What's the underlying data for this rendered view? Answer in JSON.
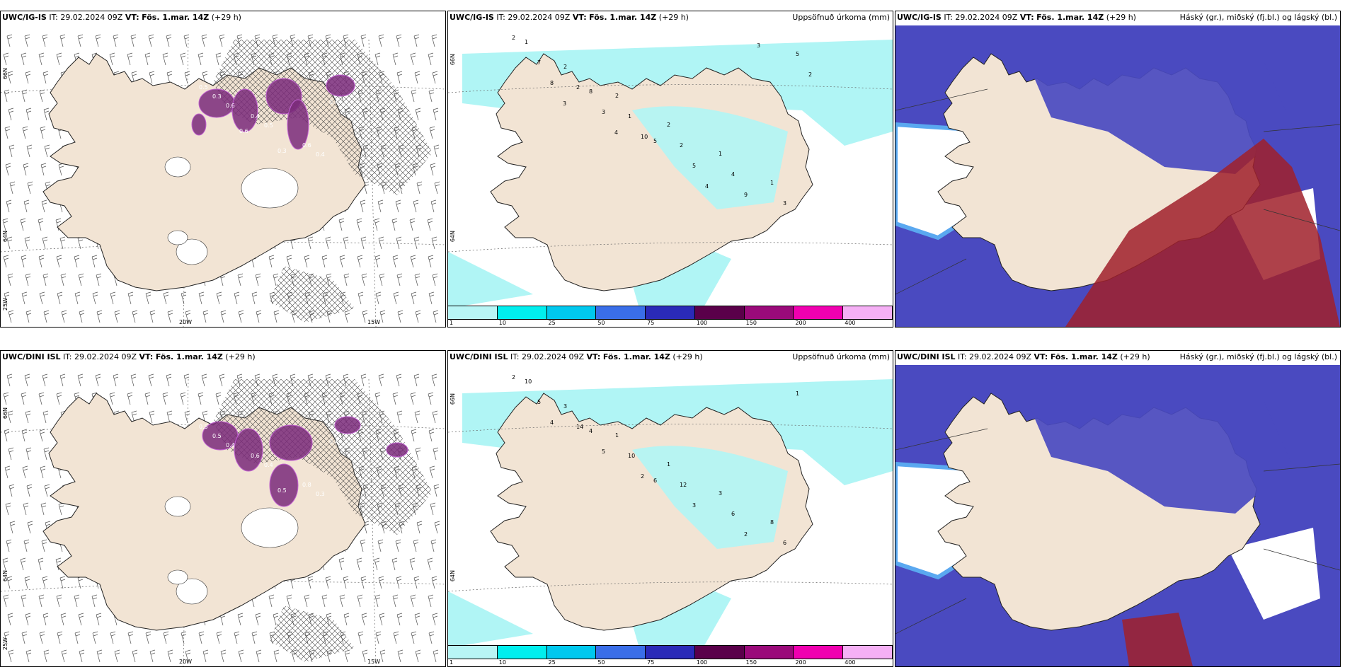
{
  "panels": [
    {
      "model": "UWC/IG-IS",
      "it": "IT: 29.02.2024 09Z",
      "vt_label": "VT:",
      "vt": "Fös. 1.mar. 14Z",
      "lead": "(+29 h)",
      "right_label": ""
    },
    {
      "model": "UWC/IG-IS",
      "it": "IT: 29.02.2024 09Z",
      "vt_label": "VT:",
      "vt": "Fös. 1.mar. 14Z",
      "lead": "(+29 h)",
      "right_label": "Uppsöfnuð úrkoma (mm)"
    },
    {
      "model": "UWC/IG-IS",
      "it": "IT: 29.02.2024 09Z",
      "vt_label": "VT:",
      "vt": "Fös. 1.mar. 14Z",
      "lead": "(+29 h)",
      "right_label": "Háský (gr.), miðský (fj.bl.) og lágský (bl.)"
    },
    {
      "model": "UWC/DINI ISL",
      "it": "IT: 29.02.2024 09Z",
      "vt_label": "VT:",
      "vt": "Fös. 1.mar. 14Z",
      "lead": "(+29 h)",
      "right_label": ""
    },
    {
      "model": "UWC/DINI ISL",
      "it": "IT: 29.02.2024 09Z",
      "vt_label": "VT:",
      "vt": "Fös. 1.mar. 14Z",
      "lead": "(+29 h)",
      "right_label": "Uppsöfnuð úrkoma (mm)"
    },
    {
      "model": "UWC/DINI ISL",
      "it": "IT: 29.02.2024 09Z",
      "vt_label": "VT:",
      "vt": "Fös. 1.mar. 14Z",
      "lead": "(+29 h)",
      "right_label": "Háský (gr.), miðský (fj.bl.) og lágský (bl.)"
    }
  ],
  "axis_labels": {
    "lat66": "66N",
    "lat64": "64N",
    "lon25": "25W",
    "lon20": "20W",
    "lon15": "15W"
  },
  "colorbar": {
    "ticks": [
      "1",
      "10",
      "25",
      "50",
      "75",
      "100",
      "150",
      "200",
      "400"
    ],
    "colors": [
      "#b8f5f5",
      "#00eeee",
      "#00c8ee",
      "#3a6ee8",
      "#2a2ab8",
      "#5a004a",
      "#9a0a7a",
      "#f000b0",
      "#f5b0f5"
    ]
  },
  "colors": {
    "land": "#f2e4d4",
    "precip_light": "#b0f5f5",
    "cloud_low": "#4a4ac0",
    "cloud_mid": "#5aa8f0",
    "cloud_high": "#a0202a"
  },
  "precip_labels_top": [
    "2",
    "2",
    "2",
    "2",
    "1",
    "1",
    "1",
    "2",
    "1",
    "2",
    "4",
    "3",
    "7",
    "8",
    "10",
    "5",
    "9",
    "5",
    "8",
    "3",
    "5",
    "4",
    "3",
    "2",
    "3",
    "4"
  ],
  "precip_labels_bot": [
    "2",
    "3",
    "1",
    "1",
    "3",
    "8",
    "10",
    "14",
    "10",
    "12",
    "6",
    "6",
    "5",
    "4",
    "2",
    "3",
    "2",
    "1",
    "4",
    "5",
    "6"
  ],
  "snow_labels_top": [
    "0.5",
    "0.4",
    "0.6",
    "0.3",
    "0.5",
    "0.4",
    "0.6",
    "0.3",
    "0.4",
    "0.6"
  ],
  "snow_labels_bot": [
    "0.5",
    "0.6",
    "0.8",
    "0.5",
    "0.4",
    "0.3",
    "0.4",
    "0.5",
    "0.4"
  ]
}
